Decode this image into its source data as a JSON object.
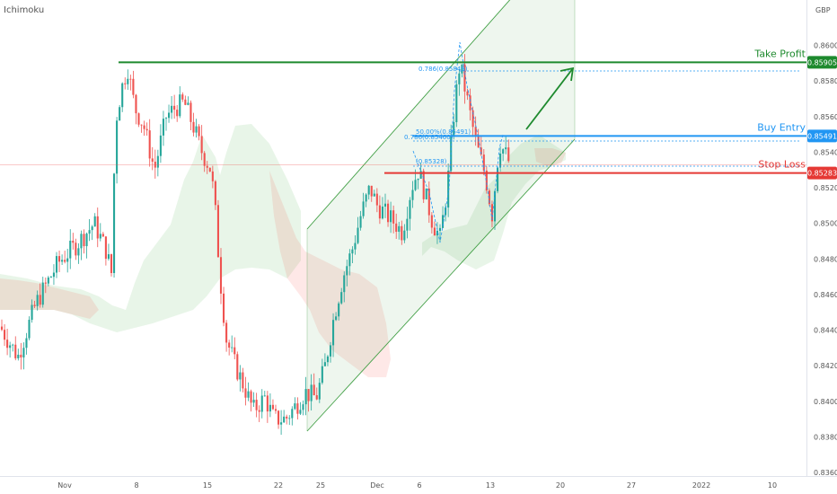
{
  "indicator_label": "Ichimoku",
  "currency": "GBP",
  "chart_data": {
    "type": "candlestick",
    "title": "",
    "ylim": [
      0.836,
      0.862
    ],
    "y_ticks": [
      "0.86000",
      "0.85800",
      "0.85600",
      "0.85400",
      "0.85200",
      "0.85000",
      "0.84800",
      "0.84600",
      "0.84400",
      "0.84200",
      "0.84000",
      "0.83800",
      "0.83600"
    ],
    "x_ticks": [
      "Nov",
      "8",
      "15",
      "22",
      "25",
      "Dec",
      "6",
      "13",
      "20",
      "27",
      "2022",
      "10"
    ],
    "levels": [
      {
        "name": "Take Profit",
        "value": 0.85905,
        "color": "#1e8a2e",
        "label": "0.85905"
      },
      {
        "name": "Buy Entry",
        "value": 0.85491,
        "color": "#2196f3",
        "label": "0.85491"
      },
      {
        "name": "Stop Loss",
        "value": 0.85283,
        "color": "#e53935",
        "label": "0.85283"
      }
    ],
    "fib_labels": [
      "0.786(0.85849)",
      "50.00%(0.85491)",
      "0.786(0.85460)",
      "(0.85328)"
    ],
    "current_price": 0.8533,
    "colors": {
      "up": "#26a69a",
      "down": "#ef5350",
      "cloud_green": "#4caf50",
      "cloud_red": "#f44336",
      "channel": "#43a047",
      "take_profit": "#1e8a2e",
      "buy_entry": "#2196f3",
      "stop_loss": "#e53935"
    }
  }
}
